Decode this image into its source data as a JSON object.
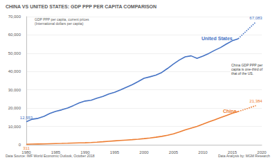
{
  "chart_data": {
    "type": "line",
    "title": "CHINA VS UNITED STATES: GDP PPP PER CAPITA COMPARISON",
    "y_label": "GDP PPP per capita, current prices\n(International dollars per capita)",
    "annotations": [
      "China GDP PPP per capita is one-third of that of the US."
    ],
    "source": "Data Source: IMF World Economic Outlook, October 2018",
    "credit": "Data Analysis by: MGM Research",
    "x": [
      1980,
      1981,
      1982,
      1983,
      1984,
      1985,
      1986,
      1987,
      1988,
      1989,
      1990,
      1991,
      1992,
      1993,
      1994,
      1995,
      1996,
      1997,
      1998,
      1999,
      2000,
      2001,
      2002,
      2003,
      2004,
      2005,
      2006,
      2007,
      2008,
      2009,
      2010,
      2011,
      2012,
      2013,
      2014,
      2015,
      2016,
      2017,
      2018,
      2019
    ],
    "series": [
      {
        "name": "United States",
        "color": "#4472c4",
        "line_style": "solid",
        "values": [
          12553,
          13950,
          14430,
          15540,
          17120,
          18240,
          19070,
          20040,
          21420,
          22860,
          23890,
          24340,
          25420,
          26390,
          27690,
          28670,
          29950,
          31440,
          32850,
          34510,
          36330,
          37130,
          38020,
          39470,
          41710,
          44120,
          46300,
          48050,
          48570,
          47200,
          48470,
          49890,
          51600,
          53110,
          55050,
          56820,
          57930,
          null,
          null,
          null
        ],
        "value_labels": [
          "12,553",
          null,
          null,
          null,
          null,
          null,
          null,
          null,
          null,
          null,
          null,
          null,
          null,
          null,
          null,
          null,
          null,
          null,
          null,
          null,
          null,
          null,
          null,
          null,
          null,
          null,
          null,
          null,
          null,
          null,
          null,
          null,
          null,
          null,
          null,
          null,
          null,
          null,
          null,
          null
        ],
        "projected_values": [
          null,
          null,
          null,
          null,
          null,
          null,
          null,
          null,
          null,
          null,
          null,
          null,
          null,
          null,
          null,
          null,
          null,
          null,
          null,
          null,
          null,
          null,
          null,
          null,
          null,
          null,
          null,
          null,
          null,
          null,
          null,
          null,
          null,
          null,
          null,
          null,
          57930,
          null,
          null,
          67083
        ],
        "projected_value_labels": [
          null,
          null,
          null,
          null,
          null,
          null,
          null,
          null,
          null,
          null,
          null,
          null,
          null,
          null,
          null,
          null,
          null,
          null,
          null,
          null,
          null,
          null,
          null,
          null,
          null,
          null,
          null,
          null,
          null,
          null,
          null,
          null,
          null,
          null,
          null,
          null,
          null,
          null,
          null,
          "67,083"
        ]
      },
      {
        "name": "China",
        "color": "#ed7d31",
        "line_style": "solid",
        "values": [
          311,
          362,
          420,
          481,
          576,
          674,
          733,
          832,
          951,
          1014,
          1077,
          1215,
          1418,
          1645,
          1890,
          2120,
          2350,
          2580,
          2790,
          3040,
          3360,
          3710,
          4100,
          4600,
          5200,
          5990,
          6960,
          8150,
          9110,
          10050,
          11260,
          12500,
          13640,
          14840,
          16030,
          17200,
          18200,
          null,
          null,
          null
        ],
        "value_labels": [
          "311",
          null,
          null,
          null,
          null,
          null,
          null,
          null,
          null,
          null,
          null,
          null,
          null,
          null,
          null,
          null,
          null,
          null,
          null,
          null,
          null,
          null,
          null,
          null,
          null,
          null,
          null,
          null,
          null,
          null,
          null,
          null,
          null,
          null,
          null,
          null,
          null,
          null,
          null,
          null
        ],
        "projected_values": [
          null,
          null,
          null,
          null,
          null,
          null,
          null,
          null,
          null,
          null,
          null,
          null,
          null,
          null,
          null,
          null,
          null,
          null,
          null,
          null,
          null,
          null,
          null,
          null,
          null,
          null,
          null,
          null,
          null,
          null,
          null,
          null,
          null,
          null,
          null,
          null,
          18200,
          null,
          null,
          21384
        ],
        "projected_value_labels": [
          null,
          null,
          null,
          null,
          null,
          null,
          null,
          null,
          null,
          null,
          null,
          null,
          null,
          null,
          null,
          null,
          null,
          null,
          null,
          null,
          null,
          null,
          null,
          null,
          null,
          null,
          null,
          null,
          null,
          null,
          null,
          null,
          null,
          null,
          null,
          null,
          null,
          null,
          null,
          "21,384"
        ]
      }
    ],
    "xlim": [
      1980,
      2020
    ],
    "xticks": [
      1980,
      1985,
      1990,
      1995,
      2000,
      2005,
      2010,
      2015,
      2020
    ],
    "ylim": [
      0,
      70000
    ],
    "yticks": [
      0,
      {
        "value": 10000,
        "label": "10,000"
      },
      {
        "value": 20000,
        "label": "20,000"
      },
      {
        "value": 30000,
        "label": "30,000"
      },
      {
        "value": 40000,
        "label": "40,000"
      },
      {
        "value": 50000,
        "label": "50,000"
      },
      {
        "value": 60000,
        "label": "60,000"
      },
      {
        "value": 70000,
        "label": "70,000"
      }
    ],
    "grid": true
  }
}
